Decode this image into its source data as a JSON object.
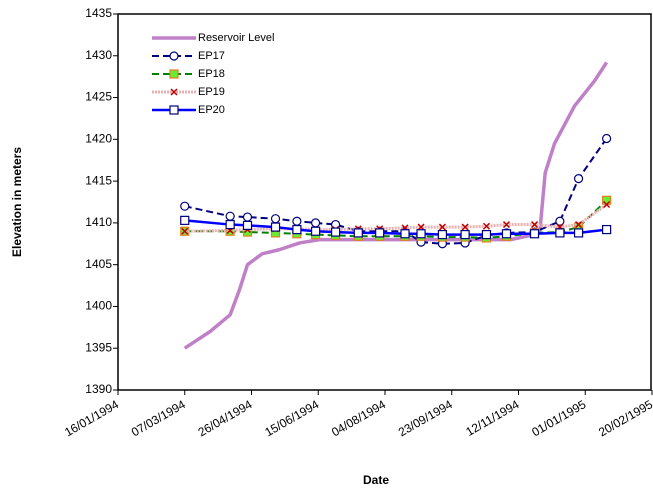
{
  "chart_data": {
    "type": "line",
    "y_label": "Elevation in meters",
    "x_label": "Date",
    "ylim": [
      1390,
      1435
    ],
    "yticks": [
      1390,
      1395,
      1400,
      1405,
      1410,
      1415,
      1420,
      1425,
      1430,
      1435
    ],
    "xlim": [
      "1994-01-16",
      "1995-02-20"
    ],
    "xticks": [
      {
        "value": "1994-01-16",
        "label": "16/01/1994"
      },
      {
        "value": "1994-03-07",
        "label": "07/03/1994"
      },
      {
        "value": "1994-04-26",
        "label": "26/04/1994"
      },
      {
        "value": "1994-06-15",
        "label": "15/06/1994"
      },
      {
        "value": "1994-08-04",
        "label": "04/08/1994"
      },
      {
        "value": "1994-09-23",
        "label": "23/09/1994"
      },
      {
        "value": "1994-11-12",
        "label": "12/11/1994"
      },
      {
        "value": "1995-01-01",
        "label": "01/01/1995"
      },
      {
        "value": "1995-02-20",
        "label": "20/02/1995"
      }
    ],
    "series": [
      {
        "name": "Reservoir Level",
        "color": "#c080c8",
        "width": 3.5,
        "dash": "none",
        "marker": "none",
        "x": [
          "1994-03-07",
          "1994-03-26",
          "1994-04-10",
          "1994-04-17",
          "1994-04-23",
          "1994-05-04",
          "1994-05-17",
          "1994-06-01",
          "1994-06-16",
          "1994-11-06",
          "1994-11-21",
          "1994-11-28",
          "1994-12-02",
          "1994-12-09",
          "1994-12-24",
          "1995-01-08",
          "1995-01-17"
        ],
        "values": [
          1395,
          1397,
          1399,
          1402,
          1405,
          1406.3,
          1406.8,
          1407.6,
          1408,
          1408,
          1408.5,
          1409,
          1416,
          1419.5,
          1424,
          1427,
          1429.2
        ]
      },
      {
        "name": "EP17",
        "color": "#000080",
        "width": 2,
        "dash": "7,4",
        "marker": "circle",
        "x": [
          "1994-03-07",
          "1994-04-10",
          "1994-04-23",
          "1994-05-14",
          "1994-05-30",
          "1994-06-13",
          "1994-06-28",
          "1994-07-15",
          "1994-07-31",
          "1994-08-19",
          "1994-08-31",
          "1994-09-16",
          "1994-10-03",
          "1994-10-19",
          "1994-11-03",
          "1994-11-24",
          "1994-12-13",
          "1994-12-27",
          "1995-01-17"
        ],
        "values": [
          1412,
          1410.8,
          1410.7,
          1410.5,
          1410.2,
          1410,
          1409.8,
          1409,
          1409,
          1409,
          1407.7,
          1407.5,
          1407.6,
          1408.5,
          1408.8,
          1408.9,
          1410.2,
          1415.3,
          1420.1
        ]
      },
      {
        "name": "EP18",
        "color": "#008000",
        "width": 2,
        "dash": "7,4",
        "marker": "square-filled",
        "x": [
          "1994-03-07",
          "1994-04-10",
          "1994-04-23",
          "1994-05-14",
          "1994-05-30",
          "1994-06-13",
          "1994-06-28",
          "1994-07-15",
          "1994-07-31",
          "1994-08-19",
          "1994-08-31",
          "1994-09-16",
          "1994-10-03",
          "1994-10-19",
          "1994-11-03",
          "1994-11-24",
          "1994-12-13",
          "1994-12-27",
          "1995-01-17"
        ],
        "values": [
          1409,
          1409,
          1408.9,
          1408.8,
          1408.7,
          1408.6,
          1408.5,
          1408.4,
          1408.4,
          1408.4,
          1408.4,
          1408.3,
          1408.3,
          1408.2,
          1408.4,
          1408.8,
          1408.9,
          1409.5,
          1412.7
        ]
      },
      {
        "name": "EP19",
        "color": "#e8b0b0",
        "width": 3,
        "dash": "2,1",
        "marker": "x",
        "x": [
          "1994-03-07",
          "1994-04-10",
          "1994-04-23",
          "1994-05-14",
          "1994-05-30",
          "1994-06-13",
          "1994-06-28",
          "1994-07-15",
          "1994-07-31",
          "1994-08-19",
          "1994-08-31",
          "1994-09-16",
          "1994-10-03",
          "1994-10-19",
          "1994-11-03",
          "1994-11-24",
          "1994-12-13",
          "1994-12-27",
          "1995-01-17"
        ],
        "values": [
          1409,
          1409.1,
          1409.2,
          1409.3,
          1409.3,
          1409.2,
          1409.2,
          1409.3,
          1409.3,
          1409.4,
          1409.5,
          1409.5,
          1409.5,
          1409.6,
          1409.8,
          1409.8,
          1409.5,
          1409.8,
          1412.2
        ]
      },
      {
        "name": "EP20",
        "color": "#0000ff",
        "width": 2.5,
        "dash": "none",
        "marker": "square",
        "x": [
          "1994-03-07",
          "1994-04-10",
          "1994-04-23",
          "1994-05-14",
          "1994-05-30",
          "1994-06-13",
          "1994-06-28",
          "1994-07-15",
          "1994-07-31",
          "1994-08-19",
          "1994-08-31",
          "1994-09-16",
          "1994-10-03",
          "1994-10-19",
          "1994-11-03",
          "1994-11-24",
          "1994-12-13",
          "1994-12-27",
          "1995-01-17"
        ],
        "values": [
          1410.3,
          1409.8,
          1409.7,
          1409.5,
          1409.2,
          1409,
          1408.9,
          1408.8,
          1408.8,
          1408.7,
          1408.7,
          1408.6,
          1408.6,
          1408.6,
          1408.7,
          1408.7,
          1408.8,
          1408.8,
          1409.2
        ]
      }
    ],
    "legend": "upper-left",
    "grid": false
  }
}
